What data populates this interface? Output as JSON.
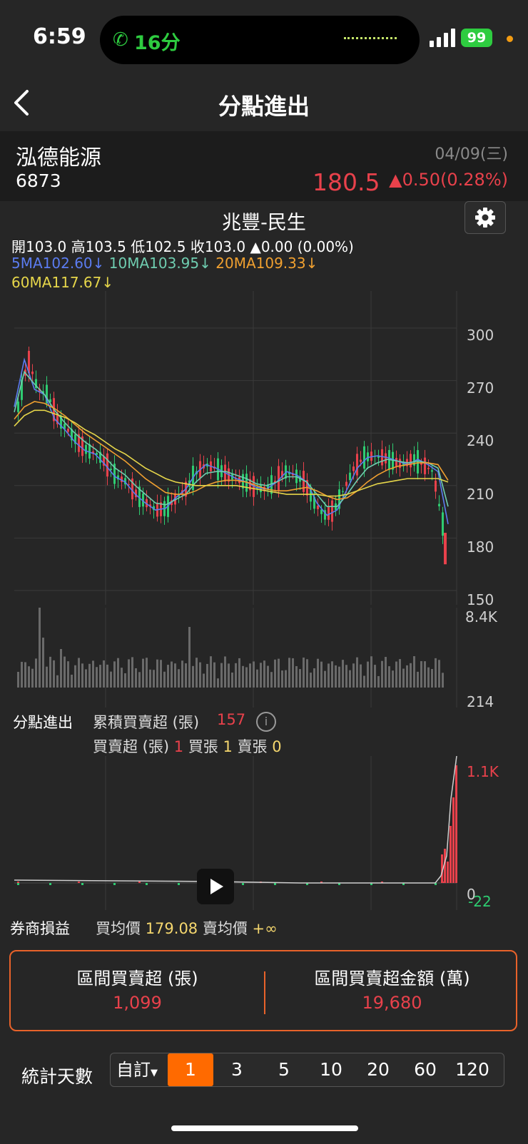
{
  "status_bar": {
    "time": "6:59",
    "call_duration": "16分",
    "battery": "99"
  },
  "nav": {
    "title": "分點進出"
  },
  "stock": {
    "name": "泓德能源",
    "code": "6873",
    "date": "04/09(三)",
    "price": "180.5",
    "change": "▲0.50(0.28%)"
  },
  "chart_header": {
    "broker": "兆豐-民生",
    "ohlc": "開103.0  高103.5  低102.5  收103.0  ▲0.00 (0.00%)",
    "ma5": "5MA102.60↓",
    "ma10": "10MA103.95↓",
    "ma20": "20MA109.33↓",
    "ma60": "60MA117.67↓"
  },
  "chart_data": [
    {
      "type": "line",
      "title": "",
      "y_ticks": [
        "300",
        "270",
        "240",
        "210",
        "180",
        "150"
      ],
      "ylim": [
        150,
        310
      ],
      "grid": true,
      "series": [
        {
          "name": "5MA",
          "color": "#5b7cf0",
          "values": [
            255,
            282,
            265,
            262,
            248,
            242,
            235,
            230,
            228,
            222,
            215,
            212,
            205,
            200,
            196,
            197,
            203,
            208,
            217,
            222,
            220,
            217,
            214,
            212,
            209,
            208,
            212,
            218,
            216,
            212,
            200,
            193,
            196,
            208,
            220,
            226,
            227,
            226,
            224,
            222,
            225,
            222,
            218,
            188
          ]
        },
        {
          "name": "10MA",
          "color": "#6fcdb0",
          "values": [
            252,
            275,
            268,
            262,
            253,
            246,
            240,
            235,
            231,
            226,
            220,
            216,
            210,
            205,
            200,
            199,
            202,
            205,
            212,
            217,
            218,
            218,
            216,
            214,
            211,
            210,
            212,
            215,
            215,
            212,
            205,
            198,
            198,
            205,
            213,
            220,
            223,
            225,
            224,
            223,
            224,
            223,
            220,
            198
          ]
        },
        {
          "name": "20MA",
          "color": "#f0a030",
          "values": [
            248,
            255,
            258,
            257,
            254,
            250,
            245,
            240,
            236,
            232,
            228,
            224,
            219,
            214,
            210,
            206,
            205,
            205,
            207,
            210,
            212,
            213,
            213,
            212,
            210,
            208,
            207,
            207,
            208,
            209,
            207,
            204,
            202,
            203,
            207,
            212,
            216,
            219,
            221,
            222,
            223,
            223,
            222,
            213
          ]
        },
        {
          "name": "60MA",
          "color": "#e6d64a",
          "values": [
            244,
            250,
            253,
            253,
            251,
            249,
            246,
            242,
            239,
            235,
            231,
            228,
            224,
            220,
            217,
            214,
            212,
            211,
            210,
            210,
            210,
            210,
            210,
            209,
            208,
            207,
            206,
            205,
            205,
            205,
            205,
            204,
            204,
            205,
            207,
            209,
            211,
            212,
            213,
            214,
            214,
            214,
            214,
            212
          ]
        }
      ]
    },
    {
      "type": "bar",
      "title": "",
      "y_ticks": [
        "8.4K",
        "214"
      ],
      "note": "volume"
    },
    {
      "type": "bar",
      "title": "",
      "y_ticks": [
        "1.1K",
        "0",
        "-22"
      ],
      "note": "cumulative net buy/sell"
    }
  ],
  "flow": {
    "label": "分點進出",
    "cum_label": "累積買賣超 (張)",
    "cum_value": "157",
    "net_label": "買賣超 (張)",
    "net_value": "1",
    "buy_label": "買張",
    "buy_value": "1",
    "sell_label": "賣張",
    "sell_value": "0"
  },
  "pnl": {
    "label": "券商損益",
    "buy_avg_label": "買均價",
    "buy_avg": "179.08",
    "sell_avg_label": "賣均價",
    "sell_avg": "+∞"
  },
  "summary": {
    "net_label": "區間買賣超 (張)",
    "net_value": "1,099",
    "amount_label": "區間買賣超金額 (萬)",
    "amount_value": "19,680"
  },
  "days": {
    "label": "統計天數",
    "custom": "自訂",
    "options": [
      "1",
      "3",
      "5",
      "10",
      "20",
      "60",
      "120"
    ],
    "selected": "1"
  },
  "colors": {
    "up": "#e8414b",
    "down": "#2ecc71",
    "accent": "#ff6a00"
  }
}
